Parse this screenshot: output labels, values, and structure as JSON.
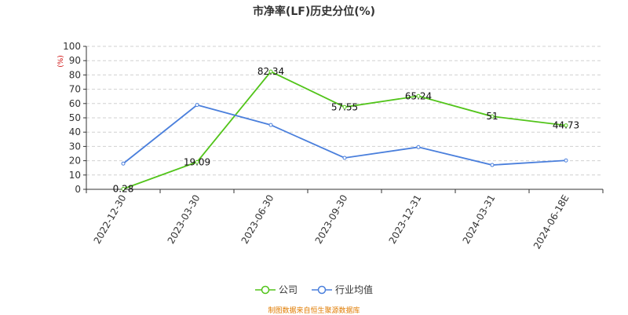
{
  "chart_data": {
    "type": "line",
    "title": "市净率(LF)历史分位(%)",
    "ylabel": "(%)",
    "ylim": [
      0,
      100
    ],
    "yticks": [
      0,
      10,
      20,
      30,
      40,
      50,
      60,
      70,
      80,
      90,
      100
    ],
    "categories": [
      "2022-12-30",
      "2023-03-30",
      "2023-06-30",
      "2023-09-30",
      "2023-12-31",
      "2024-03-31",
      "2024-06-18E"
    ],
    "series": [
      {
        "name": "公司",
        "color": "#52c41a",
        "values": [
          0.28,
          19.09,
          82.34,
          57.55,
          65.24,
          51,
          44.73
        ],
        "labels": [
          "0.28",
          "19.09",
          "82.34",
          "57.55",
          "65.24",
          "51",
          "44.73"
        ]
      },
      {
        "name": "行业均值",
        "color": "#4a7fdc",
        "values": [
          18,
          59,
          45,
          22,
          29.5,
          17,
          20.2
        ]
      }
    ],
    "grid": true,
    "legend_position": "bottom"
  },
  "source_text": "制图数据来自恒生聚源数据库"
}
